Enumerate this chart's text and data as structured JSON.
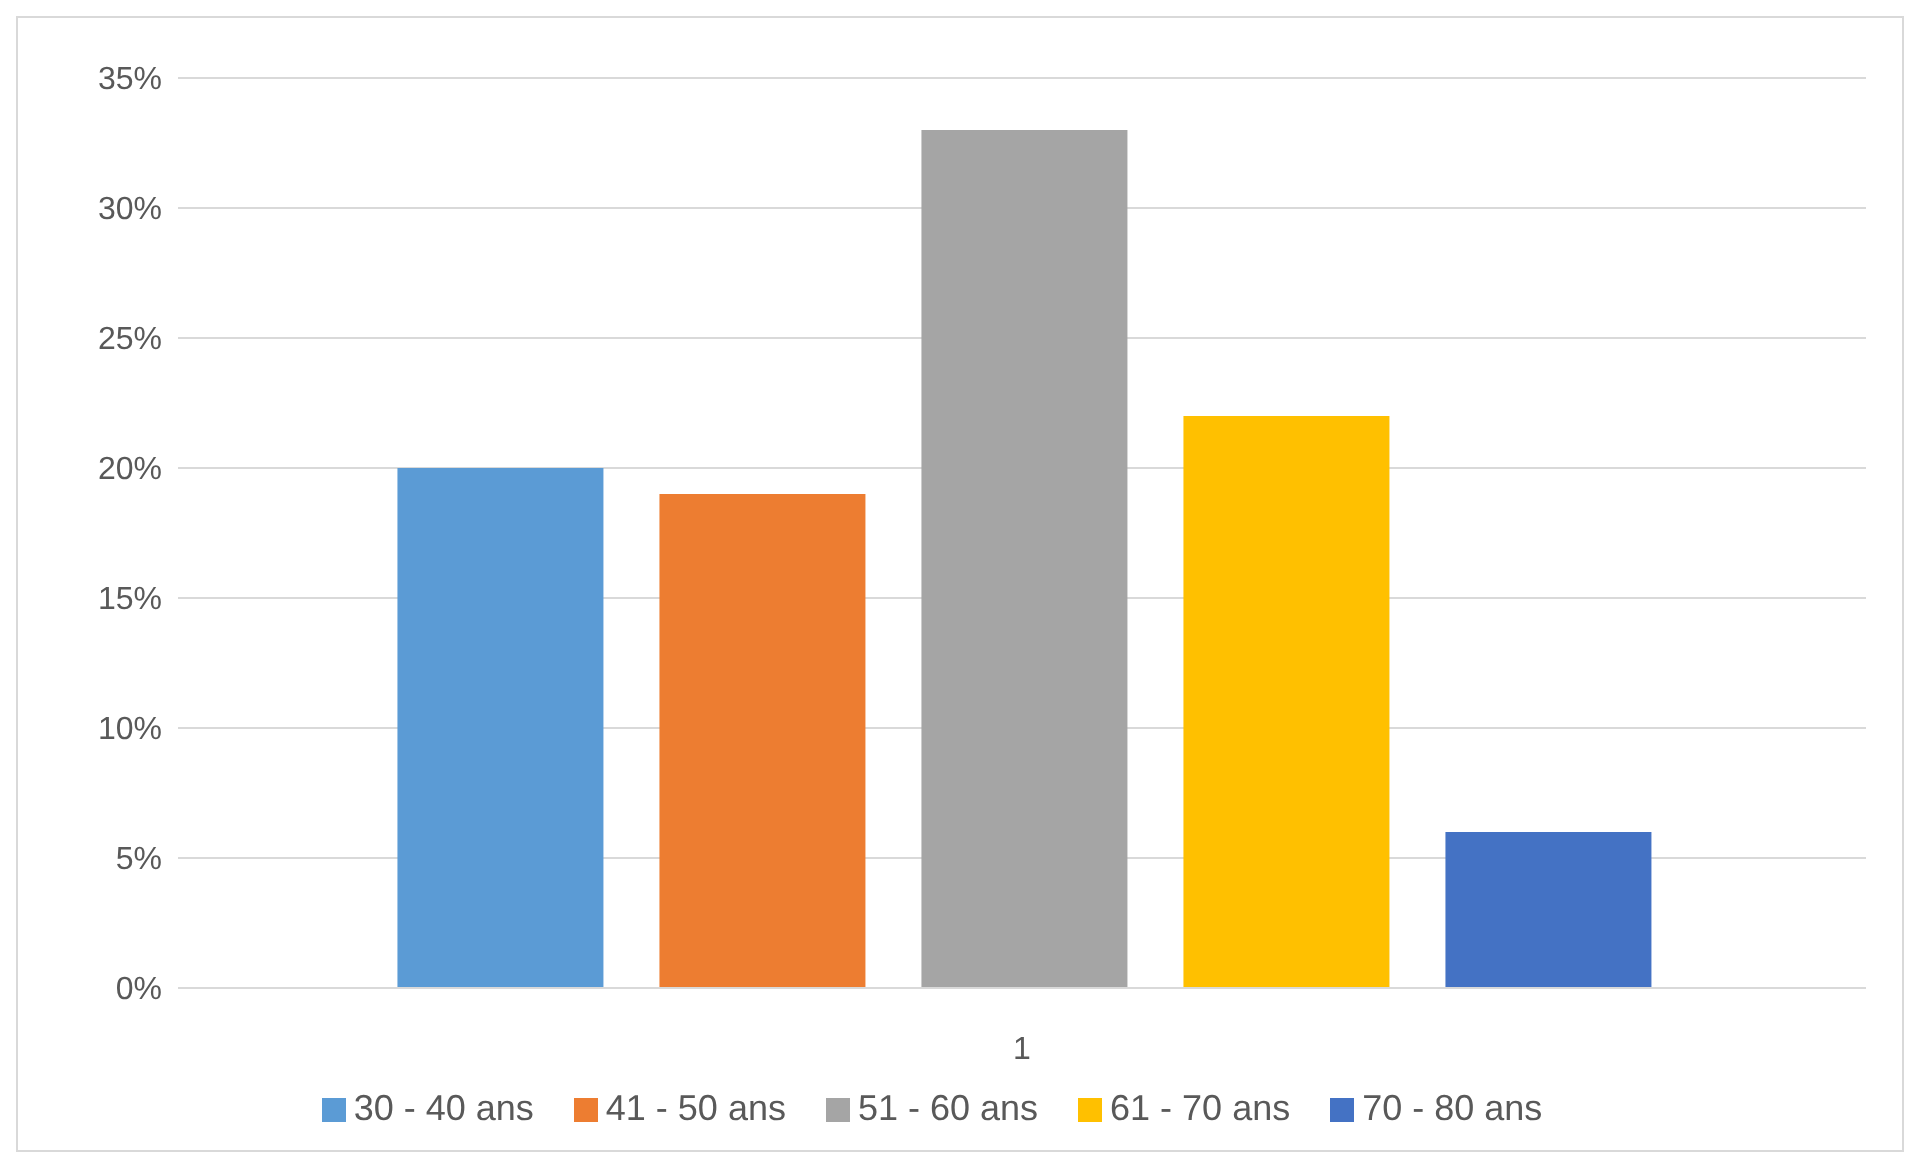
{
  "chart_data": {
    "type": "bar",
    "categories": [
      "1"
    ],
    "series": [
      {
        "name": "30 - 40 ans",
        "color": "#5b9bd5",
        "values": [
          20
        ]
      },
      {
        "name": "41 - 50 ans",
        "color": "#ed7d31",
        "values": [
          19
        ]
      },
      {
        "name": "51 - 60 ans",
        "color": "#a5a5a5",
        "values": [
          33
        ]
      },
      {
        "name": "61 - 70 ans",
        "color": "#ffc000",
        "values": [
          22
        ]
      },
      {
        "name": "70 - 80 ans",
        "color": "#4472c4",
        "values": [
          6
        ]
      }
    ],
    "ylim": [
      0,
      35
    ],
    "yticks": [
      {
        "value": 0,
        "label": "0%"
      },
      {
        "value": 5,
        "label": "5%"
      },
      {
        "value": 10,
        "label": "10%"
      },
      {
        "value": 15,
        "label": "15%"
      },
      {
        "value": 20,
        "label": "20%"
      },
      {
        "value": 25,
        "label": "25%"
      },
      {
        "value": 30,
        "label": "30%"
      },
      {
        "value": 35,
        "label": "35%"
      }
    ],
    "grid": "y",
    "legend": "bottom"
  }
}
